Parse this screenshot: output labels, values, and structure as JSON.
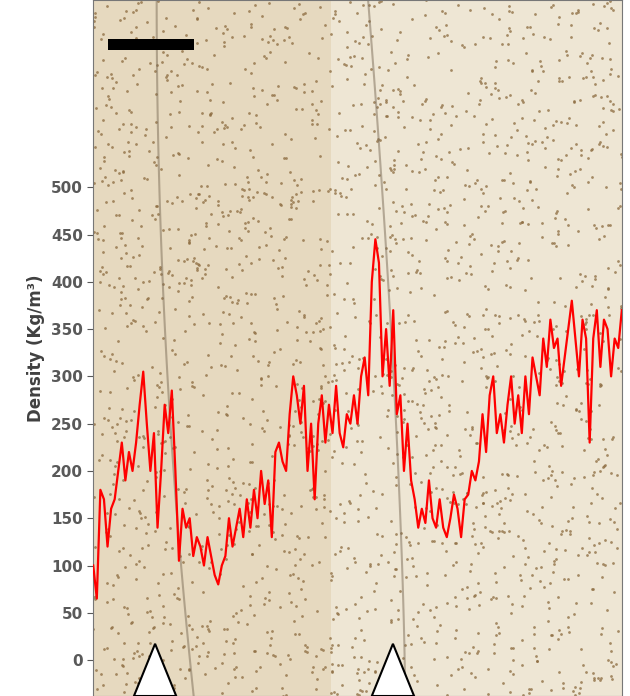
{
  "chart_data": {
    "type": "line",
    "y_label": "Density (Kg/m³)",
    "color": "#ff0000",
    "ylim": [
      -38,
      698
    ],
    "yticks": [
      0,
      50,
      100,
      150,
      200,
      250,
      300,
      350,
      400,
      450,
      500
    ],
    "tick_labels": "y",
    "grid": false,
    "values": [
      100,
      65,
      180,
      170,
      120,
      160,
      170,
      200,
      230,
      190,
      220,
      200,
      230,
      270,
      305,
      250,
      200,
      240,
      140,
      200,
      270,
      240,
      285,
      200,
      105,
      160,
      140,
      150,
      110,
      130,
      120,
      100,
      130,
      110,
      90,
      80,
      100,
      110,
      150,
      120,
      140,
      160,
      130,
      170,
      140,
      180,
      150,
      200,
      165,
      190,
      130,
      220,
      230,
      210,
      200,
      260,
      300,
      280,
      250,
      290,
      200,
      250,
      170,
      250,
      280,
      230,
      270,
      240,
      290,
      240,
      225,
      260,
      250,
      280,
      250,
      300,
      320,
      280,
      400,
      445,
      420,
      300,
      350,
      290,
      370,
      260,
      280,
      200,
      250,
      190,
      170,
      140,
      160,
      145,
      190,
      150,
      140,
      170,
      140,
      130,
      150,
      175,
      160,
      130,
      170,
      175,
      200,
      190,
      210,
      260,
      220,
      280,
      300,
      240,
      260,
      230,
      270,
      300,
      250,
      280,
      240,
      300,
      260,
      320,
      300,
      280,
      340,
      310,
      360,
      330,
      340,
      290,
      320,
      350,
      380,
      340,
      300,
      360,
      340,
      230,
      340,
      370,
      310,
      360,
      350,
      300,
      340,
      330,
      370
    ]
  }
}
